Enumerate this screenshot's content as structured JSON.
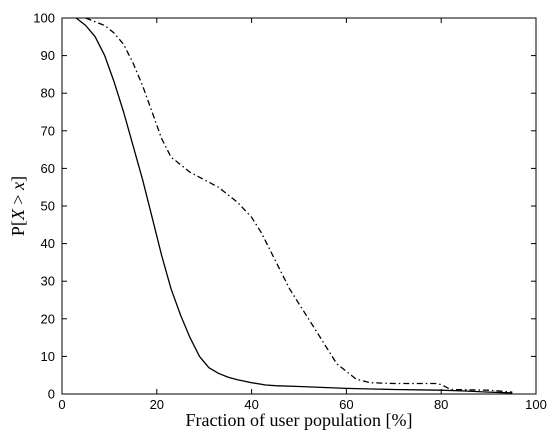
{
  "chart_data": {
    "type": "line",
    "title": "",
    "xlabel": "Fraction of user population [%]",
    "ylabel_parts": {
      "prefix": "P[",
      "var1": "X",
      "op": " > ",
      "var2": "x",
      "suffix": "]"
    },
    "xlim": [
      0,
      100
    ],
    "ylim": [
      0,
      100
    ],
    "xticks": [
      0,
      20,
      40,
      60,
      80,
      100
    ],
    "yticks": [
      0,
      10,
      20,
      30,
      40,
      50,
      60,
      70,
      80,
      90,
      100
    ],
    "grid": false,
    "series": [
      {
        "style": "solid",
        "color": "#000000",
        "x": [
          3,
          5,
          7,
          9,
          11,
          13,
          15,
          17,
          19,
          21,
          23,
          25,
          27,
          29,
          31,
          33,
          35,
          37,
          40,
          43,
          45,
          50,
          60,
          70,
          80,
          85,
          90,
          95
        ],
        "y": [
          100,
          98,
          95,
          90,
          83,
          75,
          66,
          57,
          47,
          37,
          28,
          21,
          15,
          10,
          7,
          5.5,
          4.5,
          3.8,
          3,
          2.4,
          2.2,
          2,
          1.5,
          1.2,
          1,
          0.8,
          0.5,
          0.3
        ]
      },
      {
        "style": "dashdot",
        "color": "#000000",
        "x": [
          5,
          7,
          9,
          11,
          13,
          15,
          17,
          19,
          21,
          23,
          25,
          27,
          30,
          33,
          35,
          37,
          40,
          42,
          44,
          46,
          48,
          50,
          52,
          54,
          56,
          58,
          60,
          62,
          65,
          70,
          75,
          79,
          80,
          82,
          90,
          95
        ],
        "y": [
          100,
          99,
          98,
          96,
          93,
          88,
          82,
          75,
          68,
          63,
          61,
          59,
          57,
          55,
          53,
          51,
          47,
          43,
          38,
          33,
          28,
          24,
          20,
          16,
          12,
          8,
          6,
          4,
          3,
          2.8,
          2.8,
          2.8,
          2.5,
          1.2,
          1,
          0.5
        ]
      }
    ]
  }
}
